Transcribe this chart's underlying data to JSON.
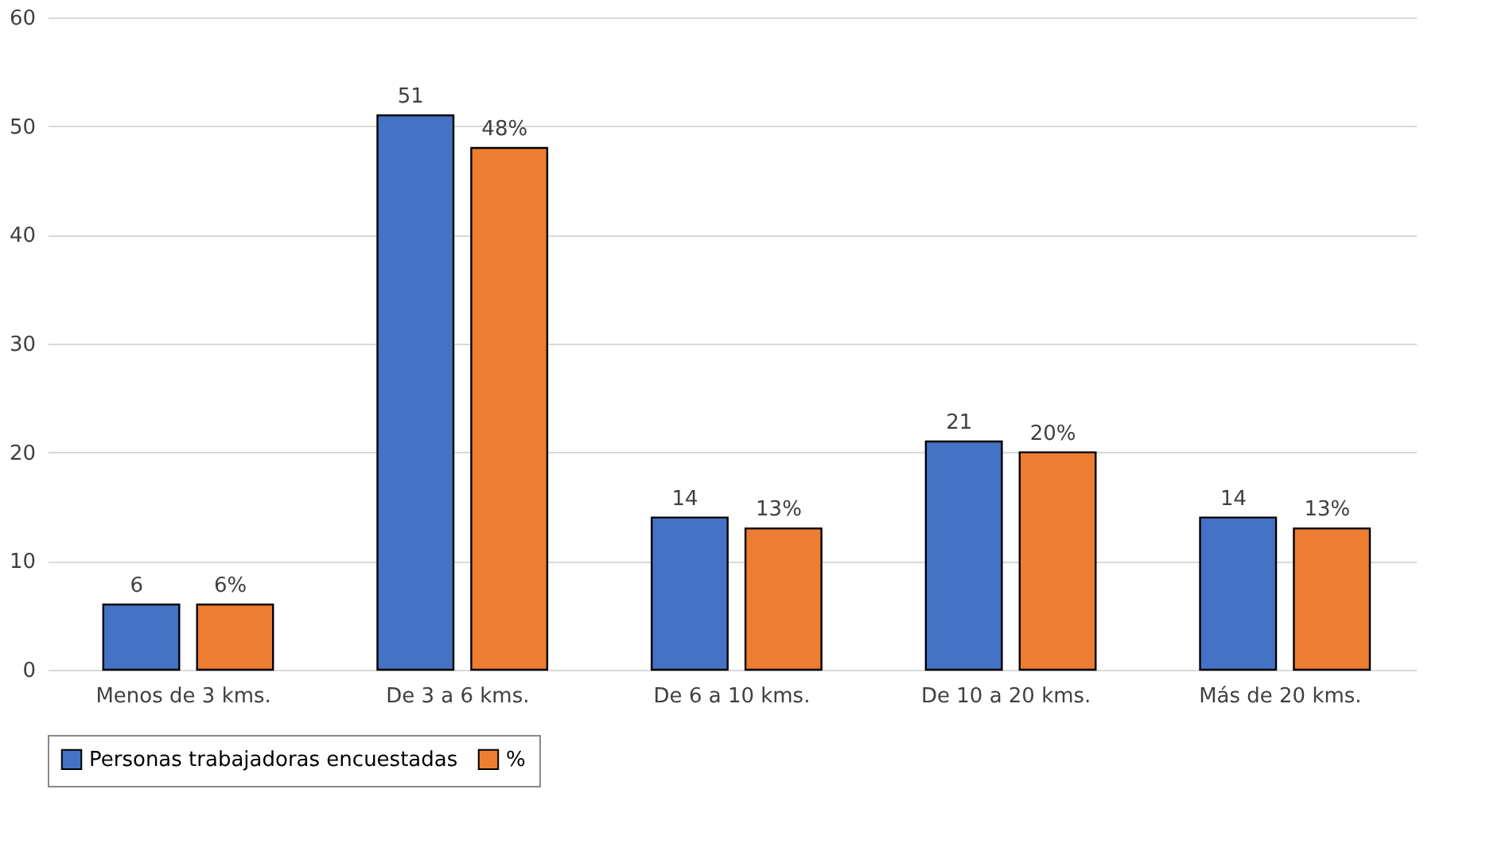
{
  "chart_data": {
    "type": "bar",
    "categories": [
      "Menos de 3 kms.",
      "De 3 a 6 kms.",
      "De 6 a 10 kms.",
      "De 10 a 20 kms.",
      "Más de 20 kms."
    ],
    "series": [
      {
        "name": "Personas trabajadoras encuestadas",
        "color": "#4472c4",
        "values": [
          6,
          51,
          14,
          21,
          14
        ],
        "value_labels": [
          "6",
          "51",
          "14",
          "21",
          "14"
        ]
      },
      {
        "name": "%",
        "color": "#ed7d31",
        "values": [
          6,
          48,
          13,
          20,
          13
        ],
        "value_labels": [
          "6%",
          "48%",
          "13%",
          "20%",
          "13%"
        ]
      }
    ],
    "ylim": [
      0,
      60
    ],
    "yticks": [
      0,
      10,
      20,
      30,
      40,
      50,
      60
    ],
    "grid": "y",
    "legend": "bottom"
  }
}
